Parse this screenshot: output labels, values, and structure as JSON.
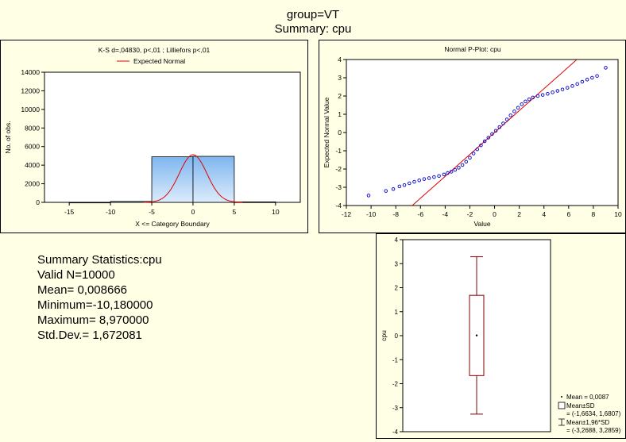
{
  "header": {
    "line1": "group=VT",
    "line2": "Summary: cpu"
  },
  "chart_data": [
    {
      "type": "bar",
      "title": "K-S d=,04830, p<,01 ; Lilliefors p<,01",
      "legend": [
        "Expected Normal"
      ],
      "legend_placement": "top",
      "xlabel": "X <= Category Boundary",
      "ylabel": "No. of obs.",
      "xlim": [
        -18,
        13
      ],
      "ylim": [
        0,
        14000
      ],
      "xticks": [
        -15,
        -10,
        -5,
        0,
        5,
        10
      ],
      "yticks": [
        0,
        2000,
        4000,
        6000,
        8000,
        10000,
        12000,
        14000
      ],
      "bin_edges": [
        -15,
        -10,
        -5,
        0,
        5,
        10
      ],
      "values": [
        10,
        100,
        4900,
        4950,
        50
      ],
      "expected_normal": {
        "mean": 0.0087,
        "sd": 1.6721,
        "bin_width": 5,
        "n": 10000
      },
      "bar_color": "#9cc8f4",
      "curve_color": "#e00000"
    },
    {
      "type": "scatter",
      "title": "Normal P-Plot: cpu",
      "xlabel": "Value",
      "ylabel": "Expected Normal Value",
      "xlim": [
        -12,
        10
      ],
      "ylim": [
        -4,
        4
      ],
      "xticks": [
        -12,
        -10,
        -8,
        -6,
        -4,
        -2,
        0,
        2,
        4,
        6,
        8,
        10
      ],
      "yticks": [
        -4,
        -3,
        -2,
        -1,
        0,
        1,
        2,
        3,
        4
      ],
      "reference_line": [
        [
          -7,
          -4.2
        ],
        [
          7,
          4.2
        ]
      ],
      "points": [
        [
          -10.2,
          -3.45
        ],
        [
          -8.8,
          -3.2
        ],
        [
          -8.2,
          -3.1
        ],
        [
          -7.7,
          -2.95
        ],
        [
          -7.3,
          -2.88
        ],
        [
          -6.9,
          -2.78
        ],
        [
          -6.5,
          -2.7
        ],
        [
          -6.1,
          -2.62
        ],
        [
          -5.7,
          -2.55
        ],
        [
          -5.3,
          -2.5
        ],
        [
          -4.9,
          -2.44
        ],
        [
          -4.5,
          -2.38
        ],
        [
          -4.1,
          -2.3
        ],
        [
          -3.8,
          -2.22
        ],
        [
          -3.5,
          -2.15
        ],
        [
          -3.2,
          -2.05
        ],
        [
          -2.9,
          -1.93
        ],
        [
          -2.6,
          -1.78
        ],
        [
          -2.3,
          -1.6
        ],
        [
          -2.0,
          -1.38
        ],
        [
          -1.7,
          -1.15
        ],
        [
          -1.4,
          -0.92
        ],
        [
          -1.1,
          -0.7
        ],
        [
          -0.8,
          -0.48
        ],
        [
          -0.5,
          -0.28
        ],
        [
          -0.2,
          -0.08
        ],
        [
          0.1,
          0.1
        ],
        [
          0.4,
          0.3
        ],
        [
          0.7,
          0.5
        ],
        [
          1.0,
          0.72
        ],
        [
          1.3,
          0.94
        ],
        [
          1.6,
          1.16
        ],
        [
          1.9,
          1.36
        ],
        [
          2.2,
          1.55
        ],
        [
          2.5,
          1.7
        ],
        [
          2.8,
          1.82
        ],
        [
          3.1,
          1.92
        ],
        [
          3.5,
          2.0
        ],
        [
          3.9,
          2.06
        ],
        [
          4.3,
          2.12
        ],
        [
          4.7,
          2.2
        ],
        [
          5.1,
          2.28
        ],
        [
          5.5,
          2.36
        ],
        [
          5.9,
          2.45
        ],
        [
          6.3,
          2.55
        ],
        [
          6.7,
          2.66
        ],
        [
          7.1,
          2.78
        ],
        [
          7.5,
          2.9
        ],
        [
          7.9,
          3.0
        ],
        [
          8.3,
          3.1
        ],
        [
          9.0,
          3.55
        ]
      ],
      "point_color": "#0000cc",
      "line_color": "#e00000"
    },
    {
      "type": "box",
      "ylabel": "cpu",
      "ylim": [
        -4,
        4
      ],
      "yticks": [
        -4,
        -3,
        -2,
        -1,
        0,
        1,
        2,
        3,
        4
      ],
      "mean": 0.0087,
      "box": [
        -1.6634,
        1.6807
      ],
      "whiskers": [
        -3.2688,
        3.2859
      ],
      "color": "#800000",
      "legend": [
        "Mean = 0,0087",
        "Mean±SD",
        "= (-1,6634, 1,6807)",
        "Mean±1,96*SD",
        "= (-3,2688, 3,2859)"
      ]
    }
  ],
  "summary": {
    "lines": [
      "Summary Statistics:cpu",
      "Valid N=10000",
      "Mean=  0,008666",
      "Minimum=-10,180000",
      "Maximum=  8,970000",
      "Std.Dev.=  1,672081"
    ]
  }
}
